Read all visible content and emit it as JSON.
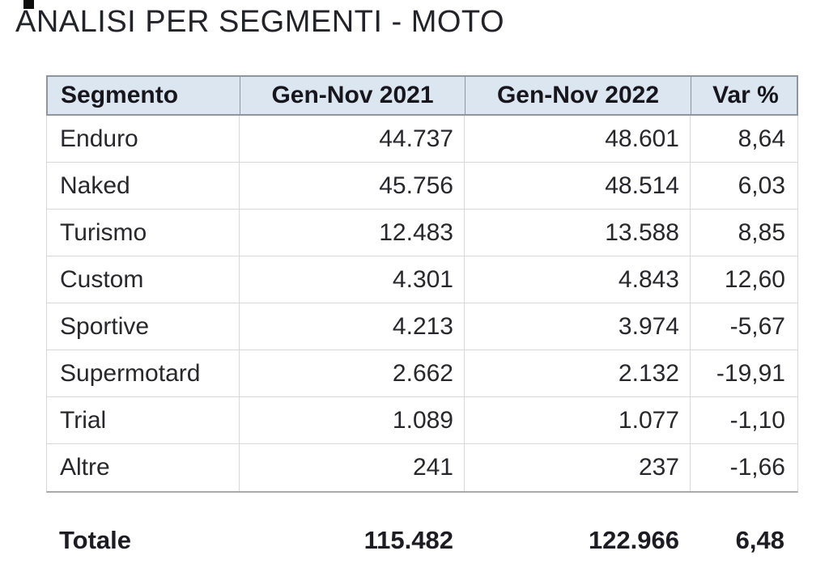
{
  "page": {
    "title": "ANALISI PER SEGMENTI - MOTO"
  },
  "colors": {
    "header_bg": "#dce6f1",
    "header_border": "#8f96a0",
    "grid_line": "#d8d8d8",
    "table_bottom_border": "#a9a9a9",
    "text": "#28282c"
  },
  "table": {
    "columns": [
      "Segmento",
      "Gen-Nov 2021",
      "Gen-Nov 2022",
      "Var %"
    ],
    "rows": [
      {
        "segment": "Enduro",
        "y2021": "44.737",
        "y2022": "48.601",
        "var": "8,64"
      },
      {
        "segment": "Naked",
        "y2021": "45.756",
        "y2022": "48.514",
        "var": "6,03"
      },
      {
        "segment": "Turismo",
        "y2021": "12.483",
        "y2022": "13.588",
        "var": "8,85"
      },
      {
        "segment": "Custom",
        "y2021": "4.301",
        "y2022": "4.843",
        "var": "12,60"
      },
      {
        "segment": "Sportive",
        "y2021": "4.213",
        "y2022": "3.974",
        "var": "-5,67"
      },
      {
        "segment": "Supermotard",
        "y2021": "2.662",
        "y2022": "2.132",
        "var": "-19,91"
      },
      {
        "segment": "Trial",
        "y2021": "1.089",
        "y2022": "1.077",
        "var": "-1,10"
      },
      {
        "segment": "Altre",
        "y2021": "241",
        "y2022": "237",
        "var": "-1,66"
      }
    ],
    "total": {
      "label": "Totale",
      "y2021": "115.482",
      "y2022": "122.966",
      "var": "6,48"
    }
  },
  "chart_data": {
    "type": "table",
    "title": "ANALISI PER SEGMENTI - MOTO",
    "columns": [
      "Segmento",
      "Gen-Nov 2021",
      "Gen-Nov 2022",
      "Var %"
    ],
    "rows": [
      [
        "Enduro",
        44737,
        48601,
        8.64
      ],
      [
        "Naked",
        45756,
        48514,
        6.03
      ],
      [
        "Turismo",
        12483,
        13588,
        8.85
      ],
      [
        "Custom",
        4301,
        4843,
        12.6
      ],
      [
        "Sportive",
        4213,
        3974,
        -5.67
      ],
      [
        "Supermotard",
        2662,
        2132,
        -19.91
      ],
      [
        "Trial",
        1089,
        1077,
        -1.1
      ],
      [
        "Altre",
        241,
        237,
        -1.66
      ]
    ],
    "total": [
      "Totale",
      115482,
      122966,
      6.48
    ]
  }
}
